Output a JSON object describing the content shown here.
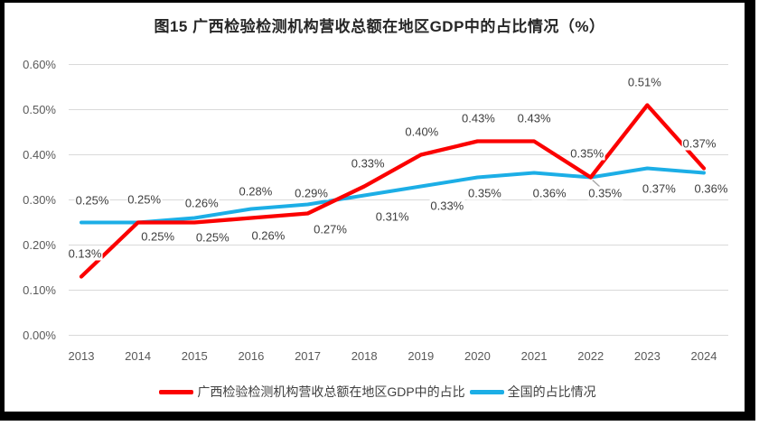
{
  "window": {
    "background": "#ffffff",
    "frame_color": "#000000"
  },
  "chart_data": {
    "type": "line",
    "title": "图15 广西检验检测机构营收总额在地区GDP中的占比情况（%）",
    "categories": [
      "2013",
      "2014",
      "2015",
      "2016",
      "2017",
      "2018",
      "2019",
      "2020",
      "2021",
      "2022",
      "2023",
      "2024"
    ],
    "xlabel": "",
    "ylabel": "",
    "y_axis": {
      "min": 0,
      "max": 0.6,
      "step": 0.1,
      "tick_labels": [
        "0.00%",
        "0.10%",
        "0.20%",
        "0.30%",
        "0.40%",
        "0.50%",
        "0.60%"
      ]
    },
    "grid": true,
    "grid_color": "#d9d9d9",
    "legend_position": "bottom",
    "label_color": "#3d3d3d",
    "axis_text_color": "#595959",
    "series": [
      {
        "name": "广西检验检测机构营收总额在地区GDP中的占比",
        "key": "guangxi",
        "color": "#fb0000",
        "stroke_width": 4.3,
        "values": [
          0.13,
          0.25,
          0.25,
          0.26,
          0.27,
          0.33,
          0.4,
          0.43,
          0.43,
          0.35,
          0.51,
          0.37
        ],
        "labels": [
          "0.13%",
          "0.25%",
          "0.25%",
          "0.26%",
          "0.27%",
          "0.33%",
          "0.40%",
          "0.43%",
          "0.43%",
          "0.35%",
          "0.51%",
          "0.37%"
        ],
        "label_offsets": [
          [
            4,
            -26
          ],
          [
            22,
            15
          ],
          [
            20,
            16
          ],
          [
            19,
            19
          ],
          [
            25,
            17
          ],
          [
            4,
            -26
          ],
          [
            1,
            -26
          ],
          [
            1,
            -26
          ],
          [
            0,
            -26
          ],
          [
            16,
            17
          ],
          [
            -3,
            -26
          ],
          [
            -5,
            -28
          ]
        ],
        "leader_line": {
          "index": 9,
          "color": "#a6a6a6"
        }
      },
      {
        "name": "全国的占比情况",
        "key": "national",
        "color": "#1caee6",
        "stroke_width": 4.0,
        "values": [
          0.25,
          0.25,
          0.26,
          0.28,
          0.29,
          0.31,
          0.33,
          0.35,
          0.36,
          0.35,
          0.37,
          0.36
        ],
        "labels": [
          "0.25%",
          "0.25%",
          "0.26%",
          "0.28%",
          "0.29%",
          "0.31%",
          "0.33%",
          "0.35%",
          "0.36%",
          "0.35%",
          "0.37%",
          "0.36%"
        ],
        "label_offsets": [
          [
            12,
            -25
          ],
          [
            7,
            -26
          ],
          [
            8,
            -17
          ],
          [
            5,
            -20
          ],
          [
            4,
            -13
          ],
          [
            31,
            23
          ],
          [
            29,
            21
          ],
          [
            8,
            17
          ],
          [
            17,
            22
          ],
          [
            -4,
            -27
          ],
          [
            13,
            22
          ],
          [
            8,
            17
          ]
        ]
      }
    ]
  }
}
